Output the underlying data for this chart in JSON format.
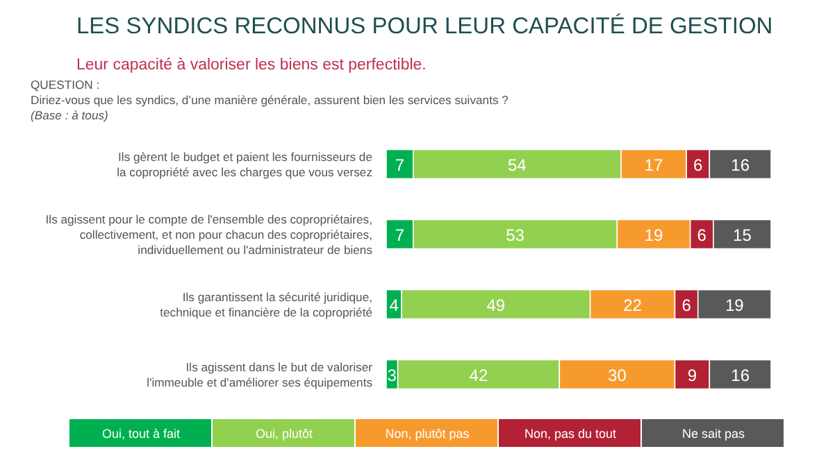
{
  "chart_data": {
    "type": "bar",
    "orientation": "horizontal",
    "stacked": true,
    "data_labels": true,
    "legend": "bottom",
    "title": "LES SYNDICS RECONNUS POUR LEUR CAPACITÉ DE GESTION",
    "subtitle": "Leur capacité à valoriser les biens est perfectible.",
    "annotations": [
      "QUESTION :",
      "Diriez-vous que les syndics, d’une manière générale, assurent bien les services suivants ?",
      "(Base : à tous)"
    ],
    "categories": [
      "Ils gèrent le budget et paient les fournisseurs de\nla copropriété avec les charges que vous versez",
      "Ils agissent pour le compte de l'ensemble des copropriétaires,\ncollectivement, et non pour chacun des copropriétaires,\nindividuellement ou l'administrateur de biens",
      "Ils garantissent la sécurité juridique,\ntechnique et financière de la copropriété",
      "Ils agissent dans le but de valoriser\nl'immeuble et d'améliorer ses équipements"
    ],
    "series": [
      {
        "name": "Oui, tout à fait",
        "color": "#00b050",
        "values": [
          7,
          7,
          4,
          3
        ]
      },
      {
        "name": "Oui, plutôt",
        "color": "#92d050",
        "values": [
          54,
          53,
          49,
          42
        ]
      },
      {
        "name": "Non, plutôt pas",
        "color": "#f79a2e",
        "values": [
          17,
          19,
          22,
          30
        ]
      },
      {
        "name": "Non, pas du tout",
        "color": "#b22234",
        "values": [
          6,
          6,
          6,
          9
        ]
      },
      {
        "name": "Ne sait pas",
        "color": "#595959",
        "values": [
          16,
          15,
          19,
          16
        ]
      }
    ]
  }
}
